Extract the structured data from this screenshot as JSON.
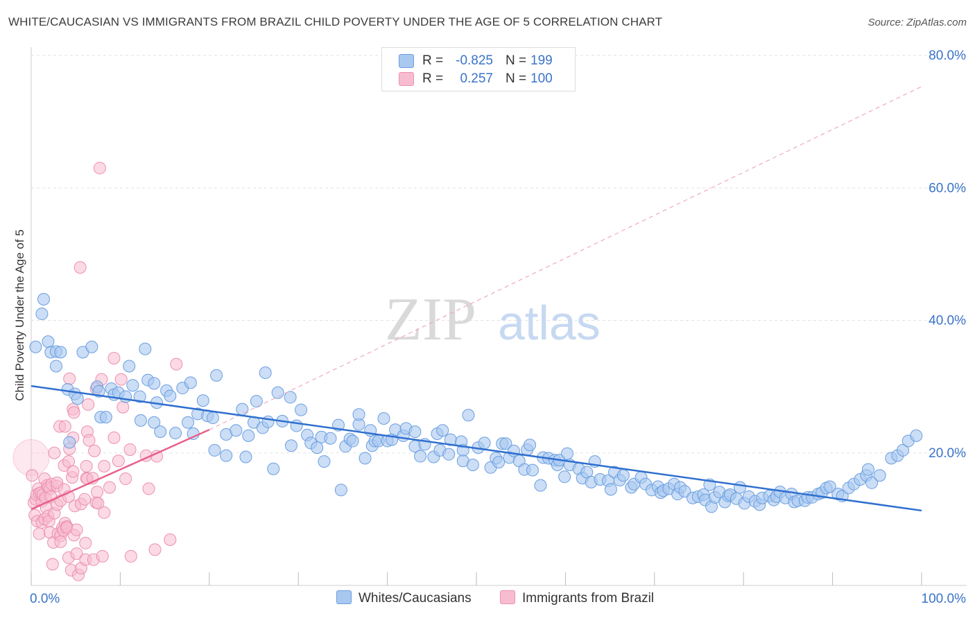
{
  "title": "WHITE/CAUCASIAN VS IMMIGRANTS FROM BRAZIL CHILD POVERTY UNDER THE AGE OF 5 CORRELATION CHART",
  "source": "Source: ZipAtlas.com",
  "watermark": {
    "zip": "ZIP",
    "atlas": "atlas"
  },
  "legend": {
    "rows": [
      {
        "r_label": "R =",
        "r_value": "-0.825",
        "n_label": "N =",
        "n_value": "199"
      },
      {
        "r_label": "R =",
        "r_value": "0.257",
        "n_label": "N =",
        "n_value": "100"
      }
    ]
  },
  "bottom_legend": {
    "series1": "Whites/Caucasians",
    "series2": "Immigrants from Brazil"
  },
  "colors": {
    "blue_fill": "#a9c8f0",
    "blue_stroke": "#6a9ee0",
    "blue_line": "#2f6fcf",
    "pink_fill": "#f7bccf",
    "pink_stroke": "#ec8fae",
    "pink_line": "#e8608a",
    "axis_text": "#3a73c8",
    "grid": "#e2e2e2"
  },
  "chart_data": {
    "type": "scatter",
    "title": "WHITE/CAUCASIAN VS IMMIGRANTS FROM BRAZIL CHILD POVERTY UNDER THE AGE OF 5 CORRELATION CHART",
    "xlabel": "",
    "ylabel": "Child Poverty Under the Age of 5",
    "xlim": [
      0,
      100
    ],
    "ylim": [
      0,
      80
    ],
    "x_tick_labels": [
      "0.0%",
      "100.0%"
    ],
    "y_ticks": [
      20,
      40,
      60,
      80
    ],
    "y_tick_labels": [
      "20.0%",
      "40.0%",
      "60.0%",
      "80.0%"
    ],
    "legend_position": "top-center",
    "series": [
      {
        "name": "Whites/Caucasians",
        "r": -0.825,
        "n": 199,
        "trend": {
          "x": [
            0,
            100
          ],
          "y": [
            30.1,
            11.3
          ]
        },
        "points": [
          [
            0.5,
            36.0
          ],
          [
            1.2,
            41.0
          ],
          [
            1.4,
            43.2
          ],
          [
            1.9,
            36.8
          ],
          [
            2.2,
            35.2
          ],
          [
            2.8,
            35.3
          ],
          [
            2.8,
            33.1
          ],
          [
            3.3,
            35.2
          ],
          [
            4.1,
            29.6
          ],
          [
            4.3,
            21.6
          ],
          [
            4.9,
            28.9
          ],
          [
            5.2,
            28.2
          ],
          [
            5.8,
            35.2
          ],
          [
            6.8,
            36.0
          ],
          [
            7.4,
            30.0
          ],
          [
            7.6,
            29.3
          ],
          [
            7.8,
            25.4
          ],
          [
            8.4,
            25.4
          ],
          [
            9.0,
            29.7
          ],
          [
            9.3,
            28.8
          ],
          [
            9.8,
            29.1
          ],
          [
            10.6,
            28.5
          ],
          [
            11.0,
            33.1
          ],
          [
            11.4,
            30.2
          ],
          [
            12.2,
            28.5
          ],
          [
            12.3,
            24.9
          ],
          [
            12.8,
            35.7
          ],
          [
            13.1,
            31.0
          ],
          [
            13.8,
            30.5
          ],
          [
            13.8,
            24.6
          ],
          [
            14.1,
            27.6
          ],
          [
            14.5,
            23.2
          ],
          [
            15.2,
            29.4
          ],
          [
            15.6,
            28.6
          ],
          [
            16.2,
            23.0
          ],
          [
            17.0,
            29.8
          ],
          [
            17.6,
            24.6
          ],
          [
            17.9,
            30.6
          ],
          [
            18.2,
            22.9
          ],
          [
            18.7,
            25.9
          ],
          [
            19.3,
            27.9
          ],
          [
            19.8,
            25.6
          ],
          [
            20.4,
            25.3
          ],
          [
            20.6,
            20.4
          ],
          [
            20.8,
            31.7
          ],
          [
            21.9,
            19.6
          ],
          [
            21.9,
            22.8
          ],
          [
            23.0,
            23.4
          ],
          [
            23.7,
            26.6
          ],
          [
            24.1,
            19.4
          ],
          [
            24.4,
            22.6
          ],
          [
            25.0,
            24.6
          ],
          [
            25.3,
            27.8
          ],
          [
            26.0,
            23.8
          ],
          [
            26.3,
            32.1
          ],
          [
            26.6,
            24.7
          ],
          [
            27.2,
            17.6
          ],
          [
            27.7,
            29.1
          ],
          [
            28.2,
            24.8
          ],
          [
            29.1,
            28.4
          ],
          [
            29.2,
            21.1
          ],
          [
            29.8,
            24.1
          ],
          [
            30.3,
            26.5
          ],
          [
            31.0,
            22.7
          ],
          [
            31.4,
            21.5
          ],
          [
            32.1,
            20.8
          ],
          [
            32.6,
            22.4
          ],
          [
            32.9,
            18.7
          ],
          [
            33.6,
            22.2
          ],
          [
            34.5,
            24.2
          ],
          [
            34.8,
            14.4
          ],
          [
            35.3,
            21.0
          ],
          [
            35.8,
            22.1
          ],
          [
            36.1,
            21.8
          ],
          [
            36.8,
            24.3
          ],
          [
            36.8,
            25.8
          ],
          [
            37.5,
            19.2
          ],
          [
            38.1,
            23.4
          ],
          [
            38.3,
            21.1
          ],
          [
            38.6,
            21.8
          ],
          [
            39.0,
            21.8
          ],
          [
            39.6,
            25.2
          ],
          [
            40.0,
            21.8
          ],
          [
            40.5,
            22.0
          ],
          [
            40.9,
            23.5
          ],
          [
            41.8,
            22.6
          ],
          [
            42.1,
            23.7
          ],
          [
            43.1,
            21.0
          ],
          [
            43.1,
            23.2
          ],
          [
            43.7,
            19.5
          ],
          [
            44.2,
            21.3
          ],
          [
            45.2,
            19.4
          ],
          [
            45.6,
            22.9
          ],
          [
            45.9,
            20.4
          ],
          [
            46.2,
            23.4
          ],
          [
            46.9,
            19.8
          ],
          [
            47.1,
            22.0
          ],
          [
            48.3,
            21.7
          ],
          [
            48.5,
            20.4
          ],
          [
            48.5,
            18.8
          ],
          [
            49.1,
            25.7
          ],
          [
            49.6,
            18.2
          ],
          [
            50.2,
            20.8
          ],
          [
            50.9,
            21.5
          ],
          [
            51.6,
            17.8
          ],
          [
            52.2,
            19.2
          ],
          [
            52.5,
            18.6
          ],
          [
            52.9,
            21.4
          ],
          [
            53.3,
            21.4
          ],
          [
            53.7,
            19.3
          ],
          [
            54.2,
            20.3
          ],
          [
            54.8,
            18.8
          ],
          [
            55.4,
            17.5
          ],
          [
            55.7,
            20.5
          ],
          [
            56.0,
            21.2
          ],
          [
            56.3,
            17.4
          ],
          [
            57.2,
            15.1
          ],
          [
            57.5,
            19.3
          ],
          [
            58.1,
            19.2
          ],
          [
            58.8,
            18.9
          ],
          [
            59.1,
            18.2
          ],
          [
            59.3,
            18.9
          ],
          [
            59.9,
            16.4
          ],
          [
            60.2,
            19.9
          ],
          [
            60.5,
            18.2
          ],
          [
            61.5,
            17.6
          ],
          [
            61.9,
            16.2
          ],
          [
            62.4,
            17.1
          ],
          [
            62.9,
            15.6
          ],
          [
            63.3,
            18.7
          ],
          [
            63.9,
            16.0
          ],
          [
            64.8,
            15.8
          ],
          [
            65.1,
            14.5
          ],
          [
            65.5,
            17.1
          ],
          [
            66.1,
            15.9
          ],
          [
            66.5,
            16.6
          ],
          [
            67.4,
            14.8
          ],
          [
            67.7,
            15.3
          ],
          [
            68.5,
            16.3
          ],
          [
            69.0,
            15.3
          ],
          [
            69.7,
            14.4
          ],
          [
            70.4,
            14.9
          ],
          [
            70.7,
            14.0
          ],
          [
            71.0,
            14.3
          ],
          [
            71.6,
            14.6
          ],
          [
            72.2,
            15.3
          ],
          [
            72.6,
            13.8
          ],
          [
            72.9,
            14.8
          ],
          [
            73.4,
            14.2
          ],
          [
            74.3,
            13.2
          ],
          [
            74.9,
            13.4
          ],
          [
            75.5,
            13.7
          ],
          [
            75.7,
            12.9
          ],
          [
            76.2,
            15.2
          ],
          [
            76.4,
            11.9
          ],
          [
            76.8,
            13.3
          ],
          [
            77.3,
            14.1
          ],
          [
            77.9,
            12.6
          ],
          [
            78.3,
            13.5
          ],
          [
            78.5,
            13.7
          ],
          [
            79.2,
            13.1
          ],
          [
            79.6,
            14.8
          ],
          [
            80.1,
            12.4
          ],
          [
            80.6,
            13.4
          ],
          [
            81.3,
            12.7
          ],
          [
            81.8,
            12.2
          ],
          [
            82.1,
            13.2
          ],
          [
            82.9,
            13.5
          ],
          [
            83.4,
            12.9
          ],
          [
            83.7,
            13.4
          ],
          [
            84.1,
            14.1
          ],
          [
            84.7,
            13.2
          ],
          [
            85.4,
            13.8
          ],
          [
            85.7,
            12.6
          ],
          [
            86.1,
            12.8
          ],
          [
            86.9,
            12.8
          ],
          [
            87.2,
            13.3
          ],
          [
            87.7,
            13.3
          ],
          [
            88.4,
            13.8
          ],
          [
            88.8,
            14.0
          ],
          [
            89.3,
            14.7
          ],
          [
            89.7,
            14.9
          ],
          [
            90.6,
            13.8
          ],
          [
            91.1,
            13.5
          ],
          [
            91.8,
            14.7
          ],
          [
            92.4,
            15.3
          ],
          [
            93.1,
            16.0
          ],
          [
            93.8,
            16.6
          ],
          [
            94.0,
            17.5
          ],
          [
            94.4,
            15.5
          ],
          [
            95.3,
            16.6
          ],
          [
            96.6,
            19.2
          ],
          [
            97.3,
            19.6
          ],
          [
            97.9,
            20.4
          ],
          [
            98.5,
            21.8
          ],
          [
            99.4,
            22.6
          ]
        ]
      },
      {
        "name": "Immigrants from Brazil",
        "r": 0.257,
        "n": 100,
        "trend": {
          "x": [
            0,
            20
          ],
          "y": [
            11.5,
            23.5
          ]
        },
        "points": [
          [
            0.1,
            16.6
          ],
          [
            0.3,
            12.5
          ],
          [
            0.4,
            10.6
          ],
          [
            0.5,
            13.0
          ],
          [
            0.6,
            13.7
          ],
          [
            0.7,
            9.7
          ],
          [
            0.8,
            14.6
          ],
          [
            0.9,
            13.9
          ],
          [
            0.9,
            7.8
          ],
          [
            1.1,
            14.0
          ],
          [
            1.2,
            12.7
          ],
          [
            1.2,
            9.5
          ],
          [
            1.3,
            13.7
          ],
          [
            1.5,
            10.0
          ],
          [
            1.5,
            16.1
          ],
          [
            1.6,
            13.2
          ],
          [
            1.7,
            11.7
          ],
          [
            1.8,
            15.1
          ],
          [
            1.9,
            14.8
          ],
          [
            1.9,
            10.5
          ],
          [
            2.0,
            9.7
          ],
          [
            2.1,
            14.6
          ],
          [
            2.1,
            8.0
          ],
          [
            2.2,
            13.4
          ],
          [
            2.3,
            15.3
          ],
          [
            2.4,
            3.2
          ],
          [
            2.5,
            6.5
          ],
          [
            2.6,
            10.9
          ],
          [
            2.6,
            20.0
          ],
          [
            2.9,
            12.2
          ],
          [
            2.9,
            15.0
          ],
          [
            2.9,
            15.5
          ],
          [
            3.0,
            7.8
          ],
          [
            3.2,
            24.0
          ],
          [
            3.3,
            12.8
          ],
          [
            3.3,
            7.5
          ],
          [
            3.3,
            6.6
          ],
          [
            3.5,
            8.7
          ],
          [
            3.6,
            8.3
          ],
          [
            3.7,
            14.5
          ],
          [
            3.7,
            18.1
          ],
          [
            3.8,
            24.0
          ],
          [
            3.8,
            9.4
          ],
          [
            4.0,
            8.9
          ],
          [
            4.0,
            8.7
          ],
          [
            4.2,
            13.4
          ],
          [
            4.2,
            4.2
          ],
          [
            4.2,
            18.7
          ],
          [
            4.3,
            20.6
          ],
          [
            4.3,
            31.2
          ],
          [
            4.5,
            2.3
          ],
          [
            4.6,
            16.3
          ],
          [
            4.7,
            17.2
          ],
          [
            4.7,
            22.3
          ],
          [
            4.7,
            26.6
          ],
          [
            4.8,
            26.1
          ],
          [
            4.8,
            7.6
          ],
          [
            4.9,
            12.0
          ],
          [
            5.1,
            8.4
          ],
          [
            5.1,
            4.8
          ],
          [
            5.3,
            1.6
          ],
          [
            5.5,
            48.0
          ],
          [
            5.6,
            2.6
          ],
          [
            5.6,
            12.3
          ],
          [
            6.0,
            13.0
          ],
          [
            6.1,
            3.9
          ],
          [
            6.1,
            6.4
          ],
          [
            6.2,
            16.2
          ],
          [
            6.2,
            18.0
          ],
          [
            6.3,
            16.1
          ],
          [
            6.3,
            23.2
          ],
          [
            6.4,
            27.3
          ],
          [
            6.5,
            21.9
          ],
          [
            6.9,
            16.2
          ],
          [
            7.0,
            3.9
          ],
          [
            7.1,
            20.3
          ],
          [
            7.3,
            12.5
          ],
          [
            7.3,
            29.7
          ],
          [
            7.4,
            14.1
          ],
          [
            7.5,
            12.4
          ],
          [
            7.7,
            63.0
          ],
          [
            7.9,
            31.1
          ],
          [
            8.0,
            4.4
          ],
          [
            8.2,
            18.0
          ],
          [
            8.2,
            11.0
          ],
          [
            8.8,
            14.8
          ],
          [
            9.3,
            22.3
          ],
          [
            9.3,
            34.3
          ],
          [
            9.8,
            18.8
          ],
          [
            10.1,
            31.1
          ],
          [
            10.3,
            26.9
          ],
          [
            10.6,
            16.1
          ],
          [
            11.1,
            20.5
          ],
          [
            11.2,
            4.4
          ],
          [
            12.9,
            19.6
          ],
          [
            13.2,
            14.6
          ],
          [
            13.9,
            5.4
          ],
          [
            14.1,
            19.5
          ],
          [
            15.6,
            6.9
          ],
          [
            16.3,
            33.4
          ]
        ]
      }
    ]
  }
}
